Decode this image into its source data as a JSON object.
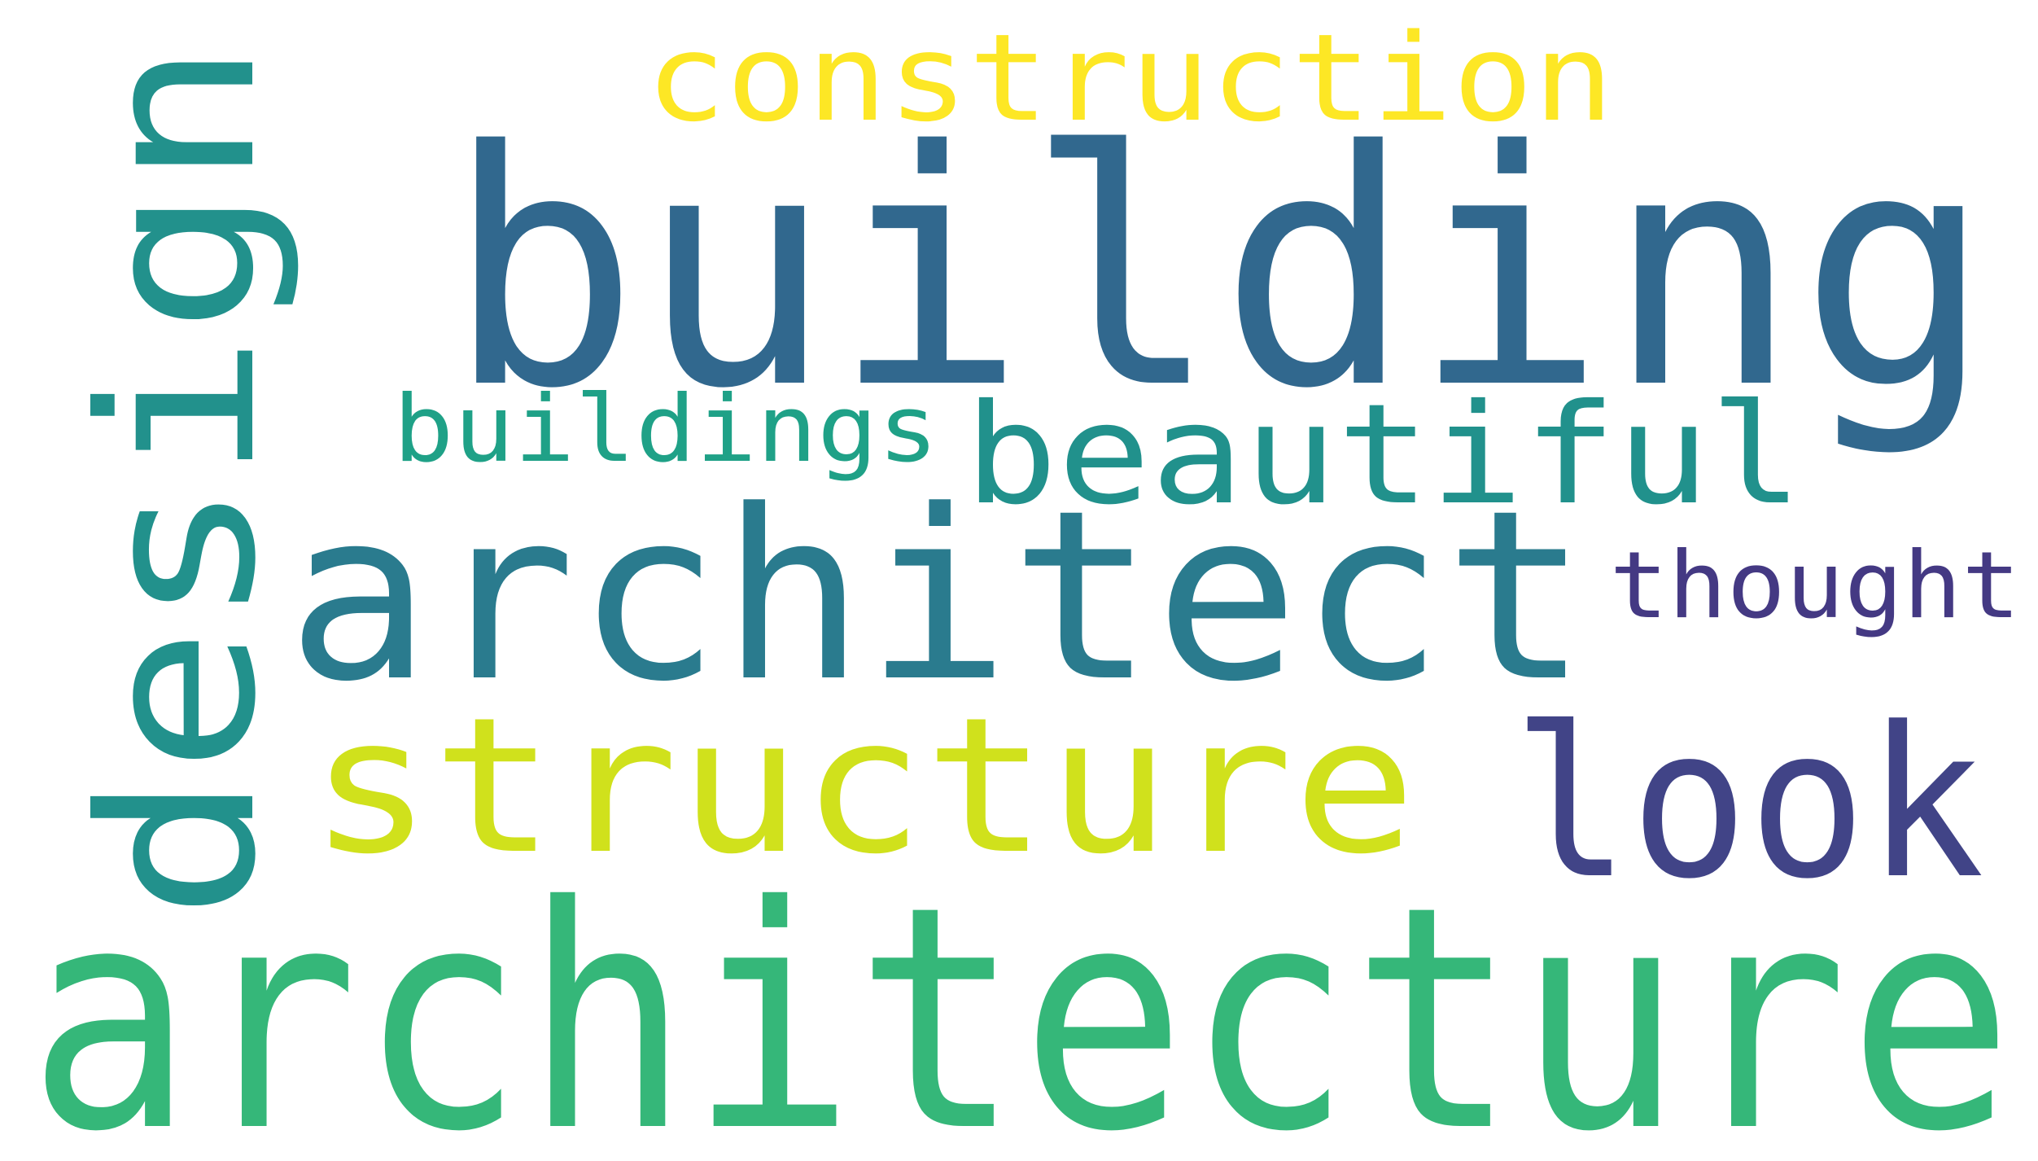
{
  "words": [
    {
      "id": "word-building",
      "text": "building",
      "color": "#31688e"
    },
    {
      "id": "word-architecture",
      "text": "architecture",
      "color": "#35b779"
    },
    {
      "id": "word-architect",
      "text": "architect",
      "color": "#2a7b8e"
    },
    {
      "id": "word-design",
      "text": "design",
      "color": "#22918c"
    },
    {
      "id": "word-structure",
      "text": "structure",
      "color": "#d0e11c"
    },
    {
      "id": "word-look",
      "text": "look",
      "color": "#414487"
    },
    {
      "id": "word-beautiful",
      "text": "beautiful",
      "color": "#21918c"
    },
    {
      "id": "word-construction",
      "text": "construction",
      "color": "#fde725"
    },
    {
      "id": "word-buildings",
      "text": "buildings",
      "color": "#1fa187"
    },
    {
      "id": "word-thought",
      "text": "thought",
      "color": "#443983"
    }
  ]
}
